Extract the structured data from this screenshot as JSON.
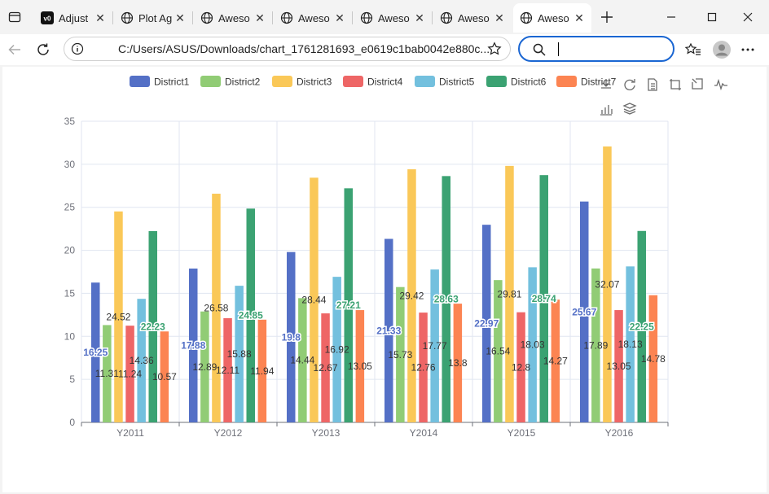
{
  "browser": {
    "tabs": [
      {
        "label": "Adjust",
        "icon": "v0-icon",
        "active": false
      },
      {
        "label": "Plot Ag",
        "icon": "globe-icon",
        "active": false
      },
      {
        "label": "Aweso",
        "icon": "globe-icon",
        "active": false
      },
      {
        "label": "Aweso",
        "icon": "globe-icon",
        "active": false
      },
      {
        "label": "Aweso",
        "icon": "globe-icon",
        "active": false
      },
      {
        "label": "Aweso",
        "icon": "globe-icon",
        "active": false
      },
      {
        "label": "Aweso",
        "icon": "globe-icon",
        "active": true
      }
    ],
    "address": "C:/Users/ASUS/Downloads/chart_1761281693_e0619c1bab0042e880c...",
    "search_value": ""
  },
  "chart_data": {
    "type": "bar",
    "categories": [
      "Y2011",
      "Y2012",
      "Y2013",
      "Y2014",
      "Y2015",
      "Y2016"
    ],
    "series": [
      {
        "name": "District1",
        "color": "#5470c6",
        "values": [
          16.25,
          17.88,
          19.8,
          21.33,
          22.97,
          25.67
        ]
      },
      {
        "name": "District2",
        "color": "#91cc75",
        "values": [
          11.31,
          12.89,
          14.44,
          15.73,
          16.54,
          17.89
        ]
      },
      {
        "name": "District3",
        "color": "#fac858",
        "values": [
          24.52,
          26.58,
          28.44,
          29.42,
          29.81,
          32.07
        ]
      },
      {
        "name": "District4",
        "color": "#ee6666",
        "values": [
          11.24,
          12.11,
          12.67,
          12.76,
          12.8,
          13.05
        ]
      },
      {
        "name": "District5",
        "color": "#73c0de",
        "values": [
          14.36,
          15.88,
          16.92,
          17.77,
          18.03,
          18.13
        ]
      },
      {
        "name": "District6",
        "color": "#3ba272",
        "values": [
          22.23,
          24.85,
          27.21,
          28.63,
          28.74,
          22.25
        ]
      },
      {
        "name": "District7",
        "color": "#fc8452",
        "values": [
          10.57,
          11.94,
          13.05,
          13.8,
          14.27,
          14.78
        ]
      }
    ],
    "ylim": [
      0,
      35
    ],
    "yticks": [
      0,
      5,
      10,
      15,
      20,
      25,
      30,
      35
    ],
    "grid": true,
    "legend_position": "top",
    "toolbox_icons": [
      "download-icon",
      "refresh-icon",
      "data-view-icon",
      "zoom-icon",
      "zoom-reset-icon",
      "line-chart-icon",
      "bar-chart-icon",
      "stack-icon"
    ]
  }
}
